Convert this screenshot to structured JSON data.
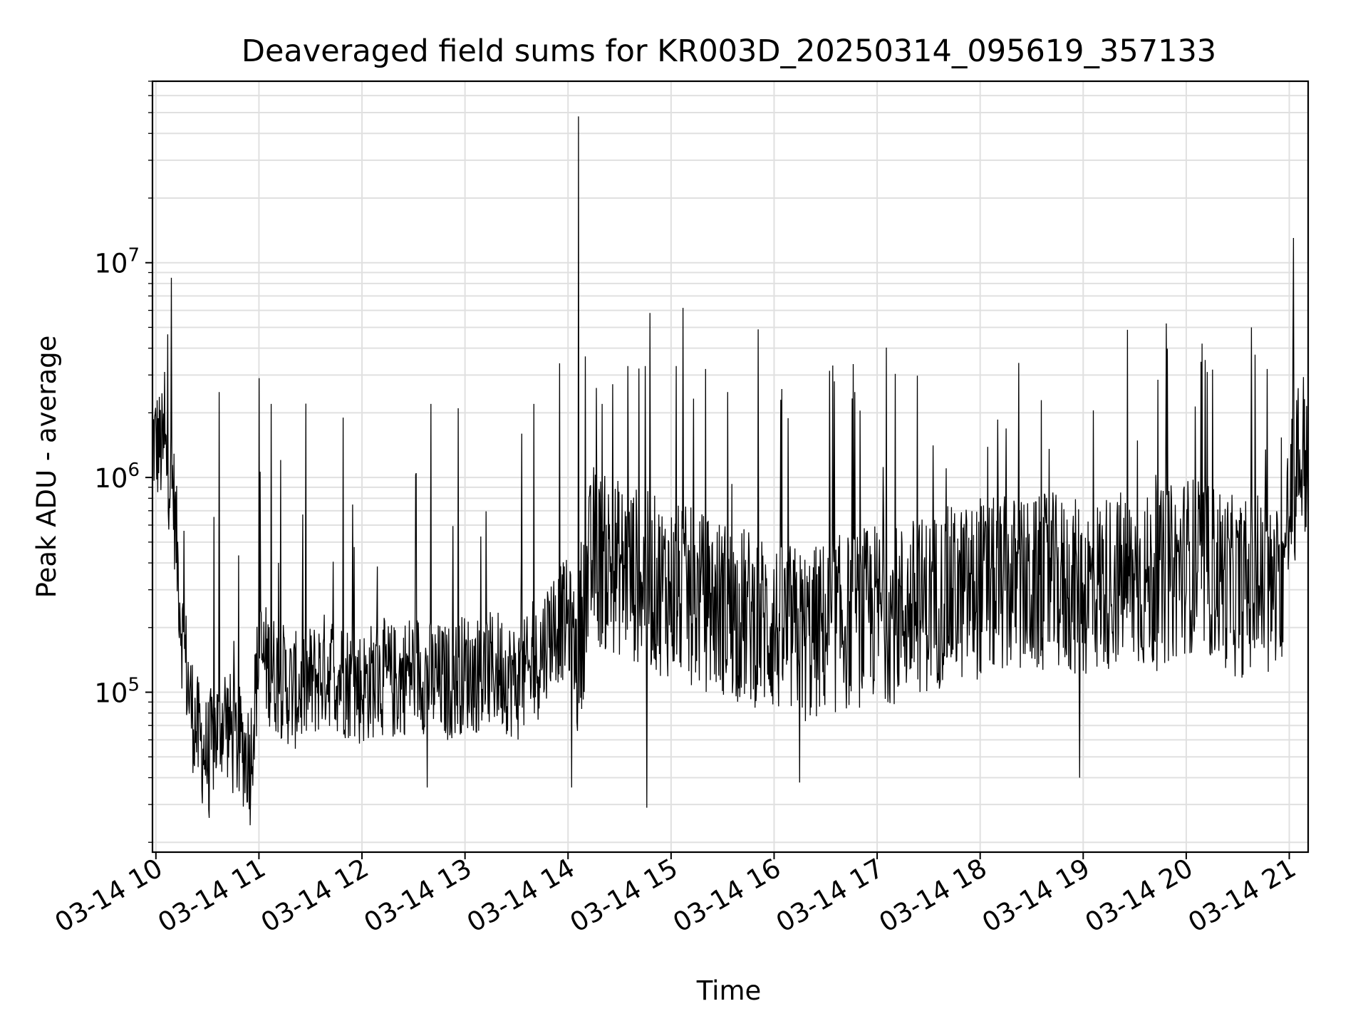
{
  "chart_data": {
    "type": "line",
    "title": "Deaveraged field sums for KR003D_20250314_095619_357133",
    "xlabel": "Time",
    "ylabel": "Peak ADU - average",
    "y_scale": "log",
    "ylim": [
      18000,
      70000000
    ],
    "xlim": [
      "2025-03-14 09:58",
      "2025-03-14 21:11"
    ],
    "grid": true,
    "line_color": "#000000",
    "grid_color": "#e0e0e0",
    "x_ticks": [
      {
        "value": "2025-03-14 10:00",
        "label": "03-14 10"
      },
      {
        "value": "2025-03-14 11:00",
        "label": "03-14 11"
      },
      {
        "value": "2025-03-14 12:00",
        "label": "03-14 12"
      },
      {
        "value": "2025-03-14 13:00",
        "label": "03-14 13"
      },
      {
        "value": "2025-03-14 14:00",
        "label": "03-14 14"
      },
      {
        "value": "2025-03-14 15:00",
        "label": "03-14 15"
      },
      {
        "value": "2025-03-14 16:00",
        "label": "03-14 16"
      },
      {
        "value": "2025-03-14 17:00",
        "label": "03-14 17"
      },
      {
        "value": "2025-03-14 18:00",
        "label": "03-14 18"
      },
      {
        "value": "2025-03-14 19:00",
        "label": "03-14 19"
      },
      {
        "value": "2025-03-14 20:00",
        "label": "03-14 20"
      },
      {
        "value": "2025-03-14 21:00",
        "label": "03-14 21"
      }
    ],
    "y_ticks": [
      {
        "value": 100000,
        "label_base": "10",
        "label_exp": "5"
      },
      {
        "value": 1000000,
        "label_base": "10",
        "label_exp": "6"
      },
      {
        "value": 10000000,
        "label_base": "10",
        "label_exp": "7"
      }
    ],
    "x": [
      "2025-03-14 09:58",
      "2025-03-14 10:05",
      "2025-03-14 10:10",
      "2025-03-14 10:15",
      "2025-03-14 10:20",
      "2025-03-14 10:25",
      "2025-03-14 10:30",
      "2025-03-14 10:35",
      "2025-03-14 10:40",
      "2025-03-14 10:45",
      "2025-03-14 10:50",
      "2025-03-14 10:55",
      "2025-03-14 11:00",
      "2025-03-14 11:10",
      "2025-03-14 11:20",
      "2025-03-14 11:30",
      "2025-03-14 11:40",
      "2025-03-14 11:50",
      "2025-03-14 12:00",
      "2025-03-14 12:10",
      "2025-03-14 12:20",
      "2025-03-14 12:30",
      "2025-03-14 12:40",
      "2025-03-14 12:50",
      "2025-03-14 13:00",
      "2025-03-14 13:10",
      "2025-03-14 13:20",
      "2025-03-14 13:30",
      "2025-03-14 13:40",
      "2025-03-14 13:50",
      "2025-03-14 14:00",
      "2025-03-14 14:05",
      "2025-03-14 14:10",
      "2025-03-14 14:15",
      "2025-03-14 14:20",
      "2025-03-14 14:30",
      "2025-03-14 14:40",
      "2025-03-14 14:50",
      "2025-03-14 15:00",
      "2025-03-14 15:10",
      "2025-03-14 15:20",
      "2025-03-14 15:30",
      "2025-03-14 15:40",
      "2025-03-14 15:50",
      "2025-03-14 16:00",
      "2025-03-14 16:10",
      "2025-03-14 16:20",
      "2025-03-14 16:30",
      "2025-03-14 16:40",
      "2025-03-14 16:50",
      "2025-03-14 17:00",
      "2025-03-14 17:10",
      "2025-03-14 17:20",
      "2025-03-14 17:30",
      "2025-03-14 17:40",
      "2025-03-14 17:50",
      "2025-03-14 18:00",
      "2025-03-14 18:10",
      "2025-03-14 18:20",
      "2025-03-14 18:30",
      "2025-03-14 18:40",
      "2025-03-14 18:50",
      "2025-03-14 19:00",
      "2025-03-14 19:10",
      "2025-03-14 19:20",
      "2025-03-14 19:30",
      "2025-03-14 19:40",
      "2025-03-14 19:50",
      "2025-03-14 20:00",
      "2025-03-14 20:10",
      "2025-03-14 20:20",
      "2025-03-14 20:30",
      "2025-03-14 20:40",
      "2025-03-14 20:50",
      "2025-03-14 20:55",
      "2025-03-14 21:00",
      "2025-03-14 21:05",
      "2025-03-14 21:11"
    ],
    "y": [
      1500000,
      1300000,
      900000,
      200000,
      90000,
      60000,
      50000,
      65000,
      80000,
      60000,
      55000,
      50000,
      150000,
      120000,
      100000,
      110000,
      130000,
      115000,
      105000,
      120000,
      110000,
      130000,
      115000,
      110000,
      125000,
      120000,
      130000,
      110000,
      125000,
      200000,
      220000,
      150000,
      280000,
      450000,
      400000,
      380000,
      350000,
      320000,
      300000,
      280000,
      260000,
      250000,
      230000,
      220000,
      200000,
      190000,
      180000,
      200000,
      210000,
      220000,
      240000,
      230000,
      250000,
      260000,
      280000,
      290000,
      300000,
      310000,
      320000,
      300000,
      330000,
      310000,
      300000,
      320000,
      340000,
      330000,
      320000,
      350000,
      400000,
      380000,
      350000,
      300000,
      320000,
      280000,
      300000,
      700000,
      1200000,
      1300000
    ],
    "spikes": [
      {
        "x": "2025-03-14 10:05",
        "y": 3100000
      },
      {
        "x": "2025-03-14 10:37",
        "y": 2500000
      },
      {
        "x": "2025-03-14 11:00",
        "y": 2900000
      },
      {
        "x": "2025-03-14 11:07",
        "y": 2200000
      },
      {
        "x": "2025-03-14 11:49",
        "y": 1900000
      },
      {
        "x": "2025-03-14 12:40",
        "y": 2200000
      },
      {
        "x": "2025-03-14 12:56",
        "y": 2100000
      },
      {
        "x": "2025-03-14 13:33",
        "y": 1600000
      },
      {
        "x": "2025-03-14 13:40",
        "y": 2200000
      },
      {
        "x": "2025-03-14 13:55",
        "y": 3400000
      },
      {
        "x": "2025-03-14 14:06",
        "y": 48000000
      },
      {
        "x": "2025-03-14 14:20",
        "y": 2200000
      },
      {
        "x": "2025-03-14 14:35",
        "y": 3300000
      },
      {
        "x": "2025-03-14 14:45",
        "y": 3300000
      },
      {
        "x": "2025-03-14 15:03",
        "y": 3300000
      },
      {
        "x": "2025-03-14 15:20",
        "y": 3200000
      },
      {
        "x": "2025-03-14 15:33",
        "y": 2500000
      },
      {
        "x": "2025-03-14 16:04",
        "y": 2300000
      },
      {
        "x": "2025-03-14 16:35",
        "y": 2800000
      },
      {
        "x": "2025-03-14 16:47",
        "y": 2500000
      },
      {
        "x": "2025-03-14 18:00",
        "y": 800000
      },
      {
        "x": "2025-03-14 19:48",
        "y": 1400000
      },
      {
        "x": "2025-03-14 20:38",
        "y": 5000000
      },
      {
        "x": "2025-03-14 20:47",
        "y": 3200000
      },
      {
        "x": "2025-03-14 21:02",
        "y": 3900000
      }
    ],
    "dips": [
      {
        "x": "2025-03-14 10:31",
        "y": 26000
      },
      {
        "x": "2025-03-14 10:55",
        "y": 24000
      },
      {
        "x": "2025-03-14 12:38",
        "y": 36000
      },
      {
        "x": "2025-03-14 14:02",
        "y": 36000
      },
      {
        "x": "2025-03-14 14:46",
        "y": 29000
      },
      {
        "x": "2025-03-14 16:15",
        "y": 38000
      },
      {
        "x": "2025-03-14 18:58",
        "y": 40000
      }
    ]
  }
}
